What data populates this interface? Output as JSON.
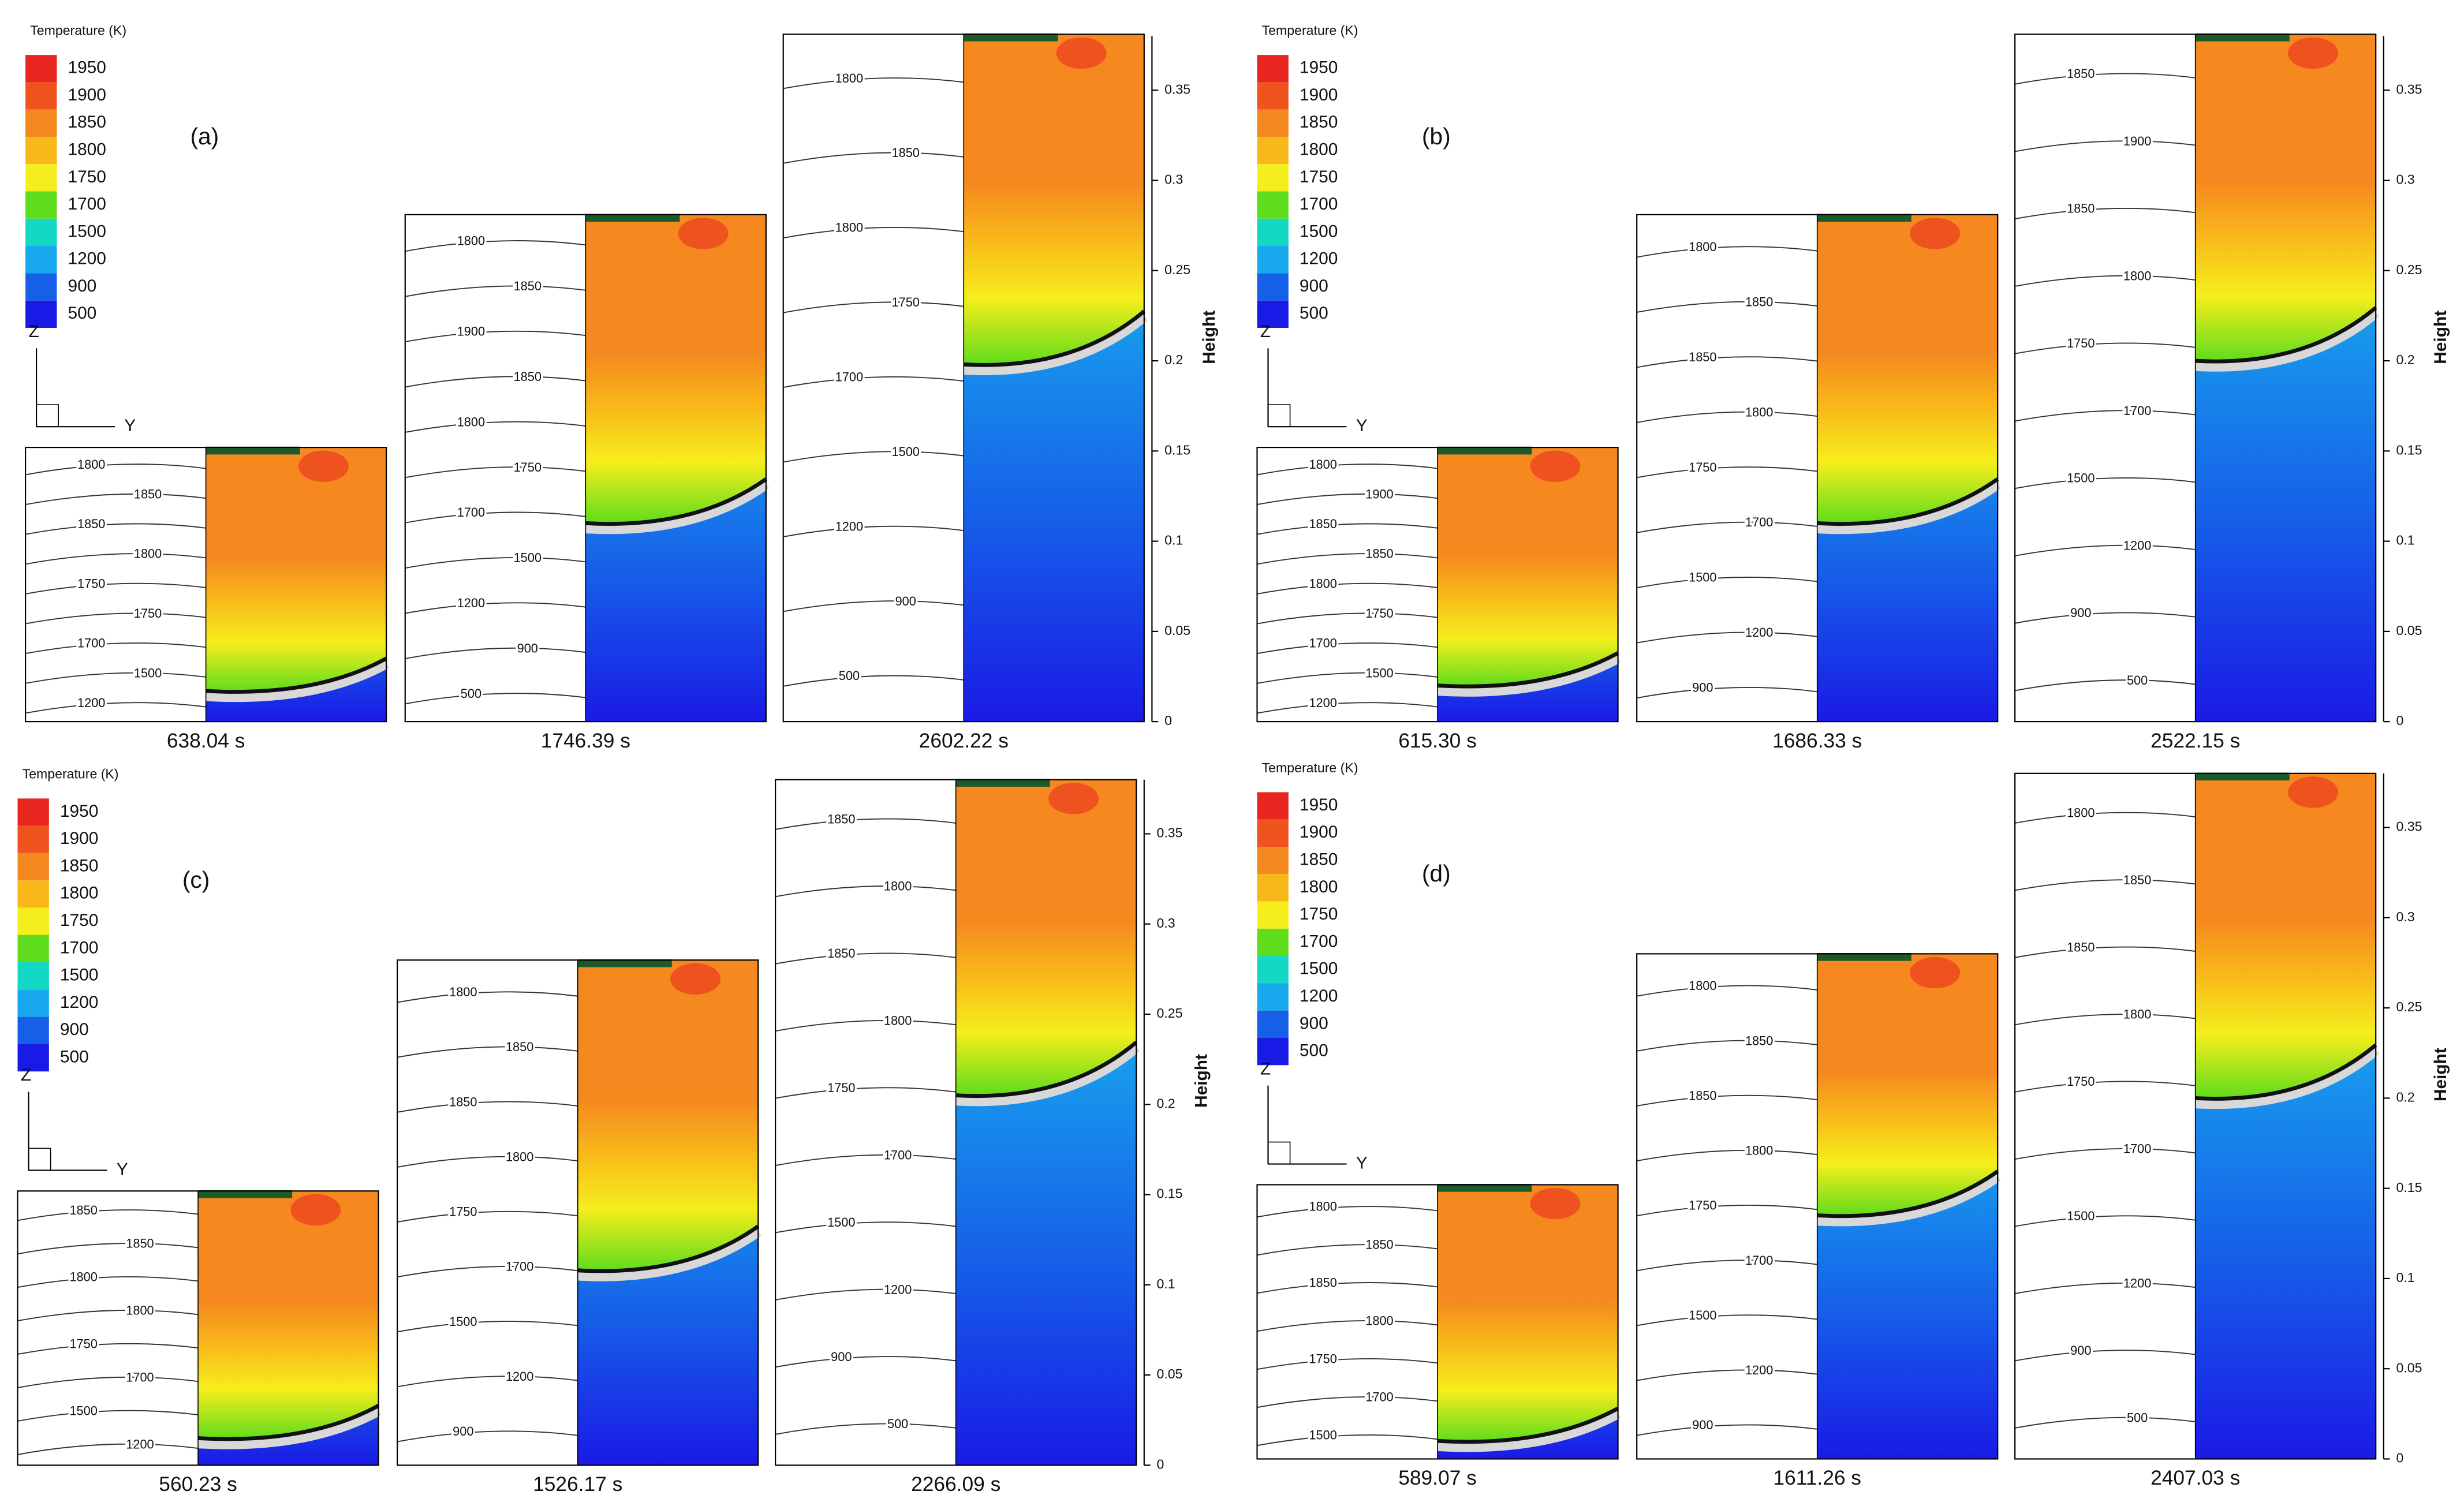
{
  "chart_data": [
    {
      "type": "contour",
      "label": "(a)",
      "colorbar": {
        "title": "Temperature (K)",
        "levels": [
          1950,
          1900,
          1850,
          1800,
          1750,
          1700,
          1500,
          1200,
          900,
          500
        ],
        "colors": [
          "#e8261f",
          "#f0541e",
          "#f5891f",
          "#f8b81a",
          "#f6ee1c",
          "#5fdc1c",
          "#12d8c4",
          "#18a8ee",
          "#1660e8",
          "#1a1ae6"
        ]
      },
      "axis_labels": {
        "z": "Z",
        "y": "Y"
      },
      "ylabel": "Height",
      "ylim": [
        0,
        0.38
      ],
      "yticks": [
        0,
        0.05,
        0.1,
        0.15,
        0.2,
        0.25,
        0.3,
        0.35
      ],
      "snapshots": [
        {
          "time": "638.04 s",
          "height": 0.152,
          "interface": 0.017,
          "contour_labels": [
            1800,
            1850,
            1850,
            1800,
            1750,
            1750,
            1700,
            1500,
            1200
          ]
        },
        {
          "time": "1746.39 s",
          "height": 0.281,
          "interface": 0.11,
          "contour_labels": [
            1800,
            1850,
            1900,
            1850,
            1800,
            1750,
            1700,
            1500,
            1200,
            900,
            500
          ]
        },
        {
          "time": "2602.22 s",
          "height": 0.381,
          "interface": 0.198,
          "contour_labels": [
            1800,
            1850,
            1800,
            1750,
            1700,
            1500,
            1200,
            900,
            500
          ]
        }
      ]
    },
    {
      "type": "contour",
      "label": "(b)",
      "colorbar": {
        "title": "Temperature (K)",
        "levels": [
          1950,
          1900,
          1850,
          1800,
          1750,
          1700,
          1500,
          1200,
          900,
          500
        ],
        "colors": [
          "#e8261f",
          "#f0541e",
          "#f5891f",
          "#f8b81a",
          "#f6ee1c",
          "#5fdc1c",
          "#12d8c4",
          "#18a8ee",
          "#1660e8",
          "#1a1ae6"
        ]
      },
      "axis_labels": {
        "z": "Z",
        "y": "Y"
      },
      "ylabel": "Height",
      "ylim": [
        0,
        0.38
      ],
      "yticks": [
        0,
        0.05,
        0.1,
        0.15,
        0.2,
        0.25,
        0.3,
        0.35
      ],
      "snapshots": [
        {
          "time": "615.30 s",
          "height": 0.152,
          "interface": 0.02,
          "contour_labels": [
            1800,
            1900,
            1850,
            1850,
            1800,
            1750,
            1700,
            1500,
            1200
          ]
        },
        {
          "time": "1686.33 s",
          "height": 0.281,
          "interface": 0.11,
          "contour_labels": [
            1800,
            1850,
            1850,
            1800,
            1750,
            1700,
            1500,
            1200,
            900
          ]
        },
        {
          "time": "2522.15 s",
          "height": 0.381,
          "interface": 0.2,
          "contour_labels": [
            1850,
            1900,
            1850,
            1800,
            1750,
            1700,
            1500,
            1200,
            900,
            500
          ]
        }
      ]
    },
    {
      "type": "contour",
      "label": "(c)",
      "colorbar": {
        "title": "Temperature (K)",
        "levels": [
          1950,
          1900,
          1850,
          1800,
          1750,
          1700,
          1500,
          1200,
          900,
          500
        ],
        "colors": [
          "#e8261f",
          "#f0541e",
          "#f5891f",
          "#f8b81a",
          "#f6ee1c",
          "#5fdc1c",
          "#12d8c4",
          "#18a8ee",
          "#1660e8",
          "#1a1ae6"
        ]
      },
      "axis_labels": {
        "z": "Z",
        "y": "Y"
      },
      "ylabel": "Height",
      "ylim": [
        0,
        0.38
      ],
      "yticks": [
        0,
        0.05,
        0.1,
        0.15,
        0.2,
        0.25,
        0.3,
        0.35
      ],
      "snapshots": [
        {
          "time": "560.23 s",
          "height": 0.152,
          "interface": 0.015,
          "contour_labels": [
            1850,
            1850,
            1800,
            1800,
            1750,
            1700,
            1500,
            1200
          ]
        },
        {
          "time": "1526.17 s",
          "height": 0.28,
          "interface": 0.108,
          "contour_labels": [
            1800,
            1850,
            1850,
            1800,
            1750,
            1700,
            1500,
            1200,
            900
          ]
        },
        {
          "time": "2266.09 s",
          "height": 0.38,
          "interface": 0.205,
          "contour_labels": [
            1850,
            1800,
            1850,
            1800,
            1750,
            1700,
            1500,
            1200,
            900,
            500
          ]
        }
      ]
    },
    {
      "type": "contour",
      "label": "(d)",
      "colorbar": {
        "title": "Temperature (K)",
        "levels": [
          1950,
          1900,
          1850,
          1800,
          1750,
          1700,
          1500,
          1200,
          900,
          500
        ],
        "colors": [
          "#e8261f",
          "#f0541e",
          "#f5891f",
          "#f8b81a",
          "#f6ee1c",
          "#5fdc1c",
          "#12d8c4",
          "#18a8ee",
          "#1660e8",
          "#1a1ae6"
        ]
      },
      "axis_labels": {
        "z": "Z",
        "y": "Y"
      },
      "ylabel": "Height",
      "ylim": [
        0,
        0.38
      ],
      "yticks": [
        0,
        0.05,
        0.1,
        0.15,
        0.2,
        0.25,
        0.3,
        0.35
      ],
      "snapshots": [
        {
          "time": "589.07 s",
          "height": 0.152,
          "interface": 0.01,
          "contour_labels": [
            1800,
            1850,
            1850,
            1800,
            1750,
            1700,
            1500
          ]
        },
        {
          "time": "1611.26 s",
          "height": 0.28,
          "interface": 0.135,
          "contour_labels": [
            1800,
            1850,
            1850,
            1800,
            1750,
            1700,
            1500,
            1200,
            900
          ]
        },
        {
          "time": "2407.03 s",
          "height": 0.38,
          "interface": 0.2,
          "contour_labels": [
            1800,
            1850,
            1850,
            1800,
            1750,
            1700,
            1500,
            1200,
            900,
            500
          ]
        }
      ]
    }
  ]
}
